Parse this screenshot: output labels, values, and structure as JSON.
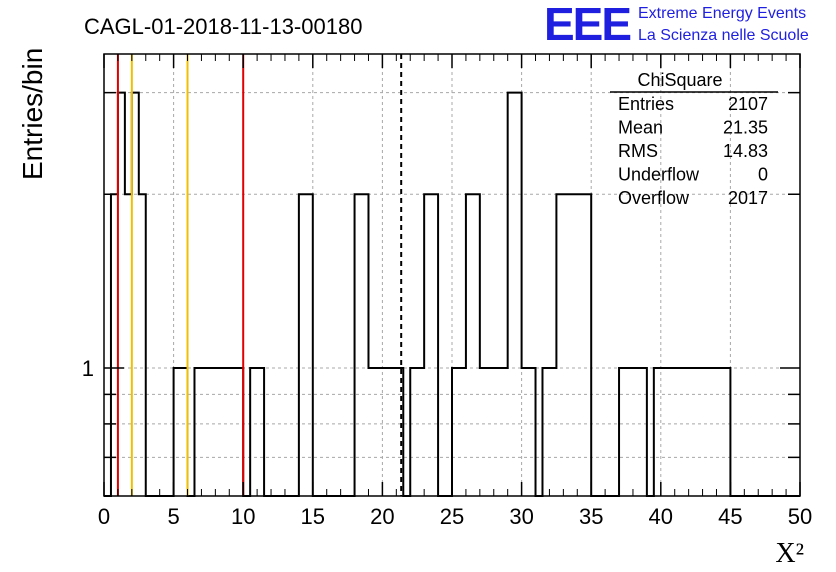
{
  "chart_data": {
    "type": "histogram",
    "title": "CAGL-01-2018-11-13-00180",
    "xlabel": "X²",
    "ylabel": "Entries/bin",
    "xlim": [
      0,
      50
    ],
    "ylim": [
      0.6,
      3.5
    ],
    "log_y": true,
    "grid": true,
    "bin_width": 0.5,
    "x_ticks": [
      0,
      5,
      10,
      15,
      20,
      25,
      30,
      35,
      40,
      45,
      50
    ],
    "y_tick_labels": [
      {
        "value": 1,
        "label": "1"
      }
    ],
    "bin_contents": [
      0,
      2,
      3,
      2,
      3,
      2,
      0,
      0,
      0,
      0,
      1,
      1,
      0,
      1,
      1,
      1,
      1,
      1,
      1,
      1,
      0,
      1,
      1,
      0,
      0,
      0,
      0,
      0,
      2,
      2,
      0,
      0,
      0,
      0,
      0,
      0,
      2,
      2,
      1,
      1,
      1,
      1,
      1,
      0,
      1,
      1,
      2,
      2,
      0,
      0,
      1,
      1,
      2,
      2,
      1,
      1,
      1,
      1,
      3,
      3,
      1,
      1,
      0,
      1,
      1,
      2,
      2,
      2,
      2,
      2,
      0,
      0,
      0,
      0,
      1,
      1,
      1,
      1,
      0,
      1,
      1,
      1,
      1,
      1,
      1,
      1,
      1,
      1,
      1,
      1,
      0,
      0,
      0,
      0,
      0,
      0,
      0,
      0,
      0,
      0
    ],
    "reference_lines": [
      {
        "x": 1,
        "color": "#e00000",
        "style": "solid"
      },
      {
        "x": 2,
        "color": "#f0c000",
        "style": "solid"
      },
      {
        "x": 6,
        "color": "#f0c000",
        "style": "solid"
      },
      {
        "x": 10,
        "color": "#e00000",
        "style": "solid"
      },
      {
        "x": 21.35,
        "color": "#000000",
        "style": "dashed"
      }
    ],
    "stats_box": {
      "name": "ChiSquare",
      "rows": [
        {
          "label": "Entries",
          "value": "2107"
        },
        {
          "label": "Mean",
          "value": "21.35"
        },
        {
          "label": "RMS",
          "value": "14.83"
        },
        {
          "label": "Underflow",
          "value": "0"
        },
        {
          "label": "Overflow",
          "value": "2017"
        }
      ]
    }
  },
  "logo": {
    "mark": "EEE",
    "line1": "Extreme Energy Events",
    "line2": "La Scienza nelle Scuole"
  }
}
